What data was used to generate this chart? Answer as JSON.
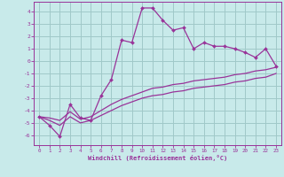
{
  "xlabel": "Windchill (Refroidissement éolien,°C)",
  "background_color": "#c8eaea",
  "grid_color": "#a0c8c8",
  "line_color": "#993399",
  "x_ticks": [
    0,
    1,
    2,
    3,
    4,
    5,
    6,
    7,
    8,
    9,
    10,
    11,
    12,
    13,
    14,
    15,
    16,
    17,
    18,
    19,
    20,
    21,
    22,
    23
  ],
  "y_ticks": [
    -6,
    -5,
    -4,
    -3,
    -2,
    -1,
    0,
    1,
    2,
    3,
    4
  ],
  "ylim": [
    -6.8,
    4.8
  ],
  "xlim": [
    -0.5,
    23.5
  ],
  "series1_x": [
    0,
    1,
    2,
    3,
    4,
    5,
    6,
    7,
    8,
    9,
    10,
    11,
    12,
    13,
    14,
    15,
    16,
    17,
    18,
    19,
    20,
    21,
    22,
    23
  ],
  "series1_y": [
    -4.5,
    -5.2,
    -6.1,
    -3.5,
    -4.6,
    -4.8,
    -2.8,
    -1.5,
    1.7,
    1.5,
    4.3,
    4.3,
    3.3,
    2.5,
    2.7,
    1.0,
    1.5,
    1.2,
    1.2,
    1.0,
    0.7,
    0.3,
    1.0,
    -0.4
  ],
  "series2_x": [
    0,
    1,
    2,
    3,
    4,
    5,
    6,
    7,
    8,
    9,
    10,
    11,
    12,
    13,
    14,
    15,
    16,
    17,
    18,
    19,
    20,
    21,
    22,
    23
  ],
  "series2_y": [
    -4.5,
    -4.6,
    -4.8,
    -4.1,
    -4.7,
    -4.5,
    -4.0,
    -3.5,
    -3.1,
    -2.8,
    -2.5,
    -2.2,
    -2.1,
    -1.9,
    -1.8,
    -1.6,
    -1.5,
    -1.4,
    -1.3,
    -1.1,
    -1.0,
    -0.8,
    -0.7,
    -0.5
  ],
  "series3_x": [
    0,
    1,
    2,
    3,
    4,
    5,
    6,
    7,
    8,
    9,
    10,
    11,
    12,
    13,
    14,
    15,
    16,
    17,
    18,
    19,
    20,
    21,
    22,
    23
  ],
  "series3_y": [
    -4.5,
    -4.8,
    -5.2,
    -4.5,
    -5.0,
    -4.8,
    -4.4,
    -4.0,
    -3.6,
    -3.3,
    -3.0,
    -2.8,
    -2.7,
    -2.5,
    -2.4,
    -2.2,
    -2.1,
    -2.0,
    -1.9,
    -1.7,
    -1.6,
    -1.4,
    -1.3,
    -1.0
  ]
}
